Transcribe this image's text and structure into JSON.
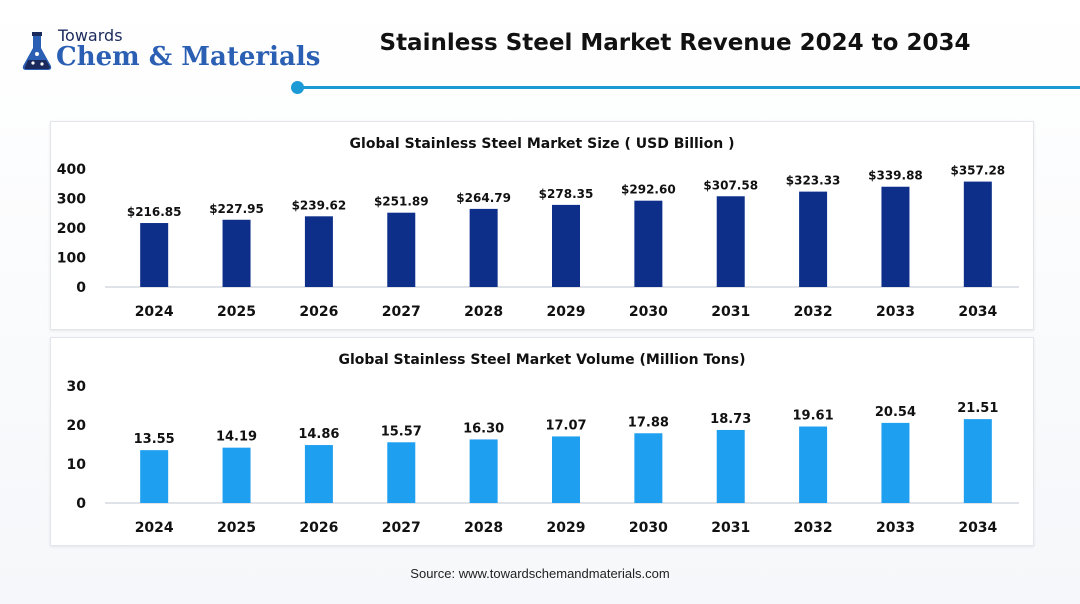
{
  "header": {
    "brand_top": "Towards",
    "brand_main": "Chem & Materials",
    "title": "Stainless Steel Market Revenue 2024 to 2034"
  },
  "footer": {
    "source": "Source: www.towardschemandmaterials.com"
  },
  "colors": {
    "accent": "#1b9ad6",
    "size_bar": "#0d2f8a",
    "volume_bar": "#1f9fef"
  },
  "chart_data": [
    {
      "type": "bar",
      "title": "Global Stainless Steel Market Size ( USD Billion )",
      "xlabel": "",
      "ylabel": "",
      "categories": [
        "2024",
        "2025",
        "2026",
        "2027",
        "2028",
        "2029",
        "2030",
        "2031",
        "2032",
        "2033",
        "2034"
      ],
      "values": [
        216.85,
        227.95,
        239.62,
        251.89,
        264.79,
        278.35,
        292.6,
        307.58,
        323.33,
        339.88,
        357.28
      ],
      "data_labels": [
        "$216.85",
        "$227.95",
        "$239.62",
        "$251.89",
        "$264.79",
        "$278.35",
        "$292.60",
        "$307.58",
        "$323.33",
        "$339.88",
        "$357.28"
      ],
      "yticks": [
        "0",
        "100",
        "200",
        "300",
        "400"
      ],
      "ylim": [
        0,
        400
      ],
      "grid": false,
      "color": "#0d2f8a"
    },
    {
      "type": "bar",
      "title": "Global Stainless Steel Market Volume (Million Tons)",
      "xlabel": "",
      "ylabel": "",
      "categories": [
        "2024",
        "2025",
        "2026",
        "2027",
        "2028",
        "2029",
        "2030",
        "2031",
        "2032",
        "2033",
        "2034"
      ],
      "values": [
        13.55,
        14.19,
        14.86,
        15.57,
        16.3,
        17.07,
        17.88,
        18.73,
        19.61,
        20.54,
        21.51
      ],
      "data_labels": [
        "13.55",
        "14.19",
        "14.86",
        "15.57",
        "16.30",
        "17.07",
        "17.88",
        "18.73",
        "19.61",
        "20.54",
        "21.51"
      ],
      "yticks": [
        "0",
        "10",
        "20",
        "30"
      ],
      "ylim": [
        0,
        30
      ],
      "grid": false,
      "color": "#1f9fef"
    }
  ]
}
